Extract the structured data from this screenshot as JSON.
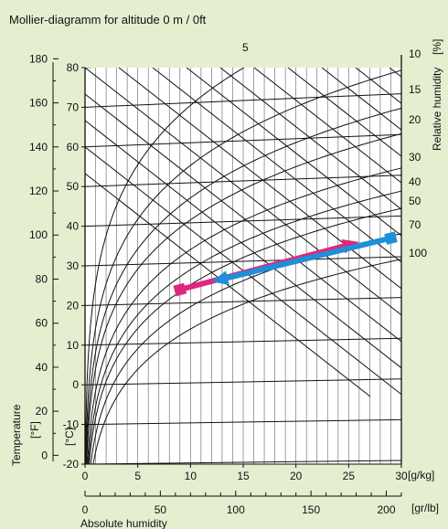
{
  "title": "Mollier-diagramm for altitude 0 m / 0ft",
  "colors": {
    "background": "#e4efd0",
    "plot_background": "#ffffff",
    "grid": "#111111",
    "pink_arrow": "#e0277e",
    "blue_arrow": "#1e8fd8"
  },
  "chart_data": {
    "type": "line",
    "title": "Mollier-diagramm for altitude 0 m / 0ft",
    "xlabel": "Absolute humidity",
    "ylabel": "Temperature",
    "x_axis": {
      "unit": "[g/kg]",
      "xlim": [
        0,
        30
      ],
      "ticks": [
        "0",
        "5",
        "10",
        "15",
        "20",
        "25",
        "30"
      ]
    },
    "x2_axis": {
      "unit": "[gr/lb]",
      "ticks": [
        "0",
        "50",
        "100",
        "150",
        "200"
      ]
    },
    "y_axis": {
      "unit": "[°C]",
      "ylim": [
        -20,
        80
      ],
      "ticks": [
        "-20",
        "-10",
        "0",
        "10",
        "20",
        "30",
        "40",
        "50",
        "60",
        "70",
        "80"
      ]
    },
    "y2_axis": {
      "unit": "[°F]",
      "ticks": [
        "0",
        "20",
        "40",
        "60",
        "80",
        "100",
        "120",
        "140",
        "160",
        "180"
      ]
    },
    "relative_humidity": {
      "label": "Relative humidity",
      "unit": "[%]",
      "curves": [
        5,
        10,
        15,
        20,
        30,
        40,
        50,
        70,
        100
      ],
      "labels": [
        "5",
        "10",
        "15",
        "20",
        "30",
        "40",
        "50",
        "70",
        "100"
      ]
    },
    "series": [
      {
        "color": "pink",
        "start": {
          "x": 9,
          "y": 24
        },
        "end": {
          "x": 26,
          "y": 36
        }
      },
      {
        "color": "blue",
        "start": {
          "x": 29,
          "y": 37
        },
        "end": {
          "x": 12,
          "y": 26
        }
      }
    ]
  }
}
